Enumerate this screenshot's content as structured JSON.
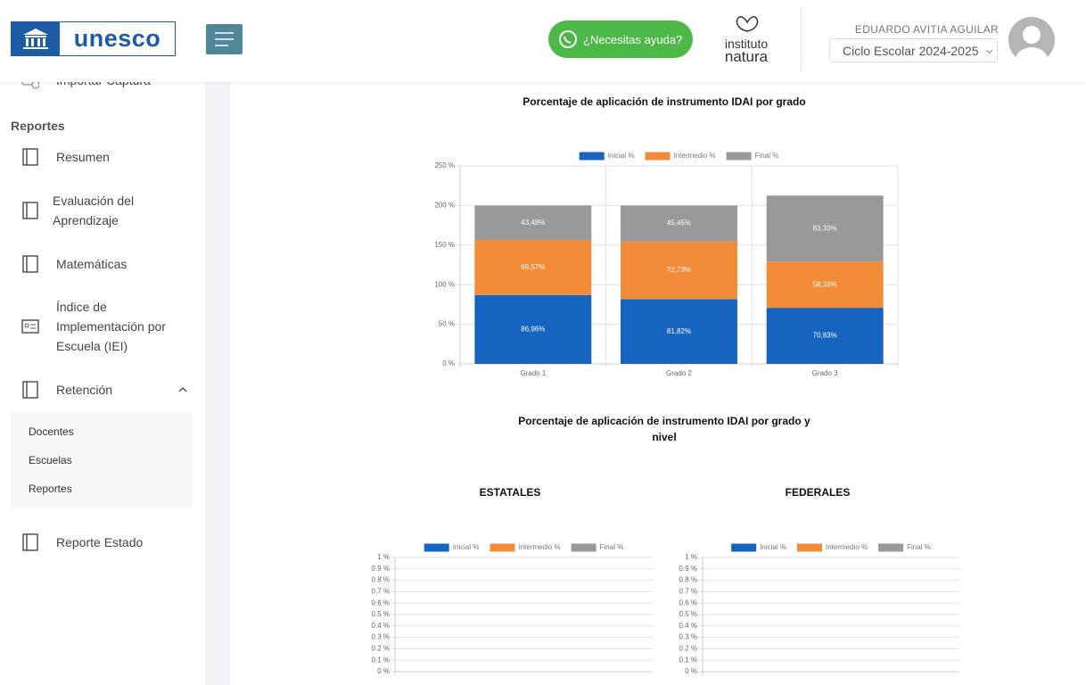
{
  "header": {
    "logo": "unesco",
    "help_button": "¿Necesitas ayuda?",
    "brand": [
      "instituto",
      "natura"
    ],
    "user_name": "EDUARDO AVITIA AGUILAR",
    "school_year": "Ciclo Escolar 2024-2025"
  },
  "sidebar": {
    "partial_item": "Importar Captura",
    "section": "Reportes",
    "items": [
      "Resumen",
      "Evaluación del Aprendizaje",
      "Matemáticas",
      "Índice de Implementación por Escuela (IEI)",
      "Retención"
    ],
    "submenu": [
      "Docentes",
      "Escuelas",
      "Reportes"
    ],
    "after": "Reporte Estado"
  },
  "section_title": "Porcentaje de aplicación de instrumento IDAI por grado y nivel",
  "chart_data": [
    {
      "type": "bar",
      "stacked": true,
      "title": "Porcentaje de aplicación de instrumento IDAI por grado",
      "categories": [
        "Grado 1",
        "Grado 2",
        "Grado 3"
      ],
      "series": [
        {
          "name": "Inicial %",
          "color": "#1565c0",
          "values": [
            86.96,
            81.82,
            70.83
          ],
          "value_labels": [
            "86,96%",
            "81,82%",
            "70,83%"
          ]
        },
        {
          "name": "Intermedio %",
          "color": "#f28c38",
          "values": [
            69.57,
            72.73,
            58.33
          ],
          "value_labels": [
            "69,57%",
            "72,73%",
            "58,33%"
          ]
        },
        {
          "name": "Final %",
          "color": "#999999",
          "values": [
            43.48,
            45.45,
            83.33
          ],
          "value_labels": [
            "43,48%",
            "45,45%",
            "83,33%"
          ]
        }
      ],
      "ylim": [
        0,
        250
      ],
      "yticks": [
        {
          "value": 0,
          "label": "0 %"
        },
        {
          "value": 50,
          "label": "50 %"
        },
        {
          "value": 100,
          "label": "100 %"
        },
        {
          "value": 150,
          "label": "150 %"
        },
        {
          "value": 200,
          "label": "200 %"
        },
        {
          "value": 250,
          "label": "250 %"
        }
      ],
      "grid": true,
      "legend": "top"
    },
    {
      "type": "bar",
      "stacked": true,
      "title": "ESTATALES",
      "categories": [],
      "series": [
        {
          "name": "Inicial %",
          "color": "#1565c0",
          "values": []
        },
        {
          "name": "Intermedio %",
          "color": "#f28c38",
          "values": []
        },
        {
          "name": "Final %",
          "color": "#999999",
          "values": []
        }
      ],
      "ylim": [
        0,
        1
      ],
      "yticks": [
        {
          "value": 0,
          "label": "0 %"
        },
        {
          "value": 0.1,
          "label": "0.1 %"
        },
        {
          "value": 0.2,
          "label": "0.2 %"
        },
        {
          "value": 0.3,
          "label": "0.3 %"
        },
        {
          "value": 0.4,
          "label": "0.4 %"
        },
        {
          "value": 0.5,
          "label": "0.5 %"
        },
        {
          "value": 0.6,
          "label": "0.6 %"
        },
        {
          "value": 0.7,
          "label": "0.7 %"
        },
        {
          "value": 0.8,
          "label": "0.8 %"
        },
        {
          "value": 0.9,
          "label": "0.9 %"
        },
        {
          "value": 1,
          "label": "1 %"
        }
      ],
      "grid": true,
      "legend": "top"
    },
    {
      "type": "bar",
      "stacked": true,
      "title": "FEDERALES",
      "categories": [],
      "series": [
        {
          "name": "Inicial %",
          "color": "#1565c0",
          "values": []
        },
        {
          "name": "Intermedio %",
          "color": "#f28c38",
          "values": []
        },
        {
          "name": "Final %",
          "color": "#999999",
          "values": []
        }
      ],
      "ylim": [
        0,
        1
      ],
      "yticks": [
        {
          "value": 0,
          "label": "0 %"
        },
        {
          "value": 0.1,
          "label": "0.1 %"
        },
        {
          "value": 0.2,
          "label": "0.2 %"
        },
        {
          "value": 0.3,
          "label": "0.3 %"
        },
        {
          "value": 0.4,
          "label": "0.4 %"
        },
        {
          "value": 0.5,
          "label": "0.5 %"
        },
        {
          "value": 0.6,
          "label": "0.6 %"
        },
        {
          "value": 0.7,
          "label": "0.7 %"
        },
        {
          "value": 0.8,
          "label": "0.8 %"
        },
        {
          "value": 0.9,
          "label": "0.9 %"
        },
        {
          "value": 1,
          "label": "1 %"
        }
      ],
      "grid": true,
      "legend": "top"
    }
  ]
}
